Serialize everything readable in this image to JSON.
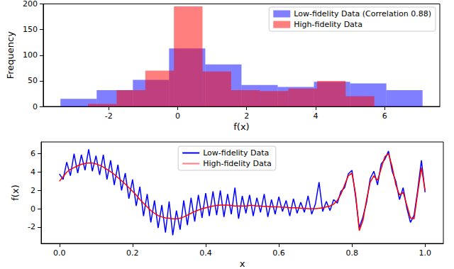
{
  "chart_data": [
    {
      "type": "histogram",
      "x_label": "f(x)",
      "y_label": "Frequency",
      "xlim": [
        -3.9,
        7.6
      ],
      "ylim": [
        0,
        200
      ],
      "xticks": [
        -2,
        0,
        2,
        4,
        6
      ],
      "yticks": [
        0,
        50,
        100,
        150,
        200
      ],
      "grid": false,
      "legend": "upper right",
      "series": [
        {
          "name": "Low-fidelity Data (Correlation 0.88)",
          "color": "#0000ff",
          "bins": [
            -3.4,
            -2.35,
            -1.3,
            -0.25,
            0.8,
            1.85,
            2.9,
            3.95,
            5.0,
            6.05,
            7.1
          ],
          "values": [
            15,
            32,
            52,
            113,
            82,
            42,
            38,
            48,
            45,
            32
          ]
        },
        {
          "name": "High-fidelity Data",
          "color": "#ff0000",
          "bins": [
            -2.6,
            -1.77,
            -0.94,
            -0.11,
            0.72,
            1.55,
            2.38,
            3.21,
            4.04,
            4.87,
            5.7
          ],
          "values": [
            5,
            32,
            70,
            195,
            68,
            32,
            30,
            35,
            50,
            20
          ]
        }
      ]
    },
    {
      "type": "line",
      "x_label": "x",
      "y_label": "f(x)",
      "xlim": [
        -0.05,
        1.05
      ],
      "ylim": [
        -3.8,
        7.3
      ],
      "xticks": [
        {
          "value": 0,
          "label": "0.0"
        },
        {
          "value": 0.2,
          "label": "0.2"
        },
        {
          "value": 0.4,
          "label": "0.4"
        },
        {
          "value": 0.6,
          "label": "0.6"
        },
        {
          "value": 0.8,
          "label": "0.8"
        },
        {
          "value": 1,
          "label": "1.0"
        }
      ],
      "yticks": [
        -2,
        0,
        2,
        4,
        6
      ],
      "grid": false,
      "legend": "upper center",
      "x": [
        0,
        0.01,
        0.02,
        0.03,
        0.04,
        0.05,
        0.06,
        0.07,
        0.08,
        0.09,
        0.1,
        0.11,
        0.12,
        0.13,
        0.14,
        0.15,
        0.16,
        0.17,
        0.18,
        0.19,
        0.2,
        0.21,
        0.22,
        0.23,
        0.24,
        0.25,
        0.26,
        0.27,
        0.28,
        0.29,
        0.3,
        0.31,
        0.32,
        0.33,
        0.34,
        0.35,
        0.36,
        0.37,
        0.38,
        0.39,
        0.4,
        0.41,
        0.42,
        0.43,
        0.44,
        0.45,
        0.46,
        0.47,
        0.48,
        0.49,
        0.5,
        0.51,
        0.52,
        0.53,
        0.54,
        0.55,
        0.56,
        0.57,
        0.58,
        0.59,
        0.6,
        0.61,
        0.62,
        0.63,
        0.64,
        0.65,
        0.66,
        0.67,
        0.68,
        0.69,
        0.7,
        0.71,
        0.72,
        0.73,
        0.74,
        0.75,
        0.76,
        0.77,
        0.78,
        0.79,
        0.8,
        0.81,
        0.82,
        0.83,
        0.84,
        0.85,
        0.86,
        0.87,
        0.88,
        0.89,
        0.9,
        0.91,
        0.92,
        0.93,
        0.94,
        0.95,
        0.96,
        0.97,
        0.98,
        0.99,
        1.0
      ],
      "series": [
        {
          "name": "Low-fidelity Data",
          "color": "#0000ff",
          "values": [
            3.8,
            3.2,
            5.1,
            3.6,
            6.0,
            3.9,
            5.9,
            4.2,
            6.5,
            4.1,
            5.8,
            3.7,
            5.9,
            3.2,
            5.3,
            2.6,
            4.8,
            2.0,
            3.9,
            1.1,
            3.2,
            0.3,
            2.4,
            -0.8,
            1.6,
            -1.5,
            0.9,
            -2.1,
            0.4,
            -2.6,
            0.8,
            -2.9,
            -0.2,
            -2.3,
            0.9,
            -1.8,
            1.2,
            -1.4,
            1.5,
            -1.0,
            1.7,
            -0.8,
            1.9,
            -0.7,
            2.0,
            -0.9,
            1.6,
            -0.6,
            2.3,
            -1.1,
            1.4,
            -0.5,
            1.5,
            -0.8,
            1.2,
            -0.4,
            1.6,
            -0.9,
            1.0,
            -0.6,
            1.3,
            -0.3,
            0.9,
            -0.8,
            1.1,
            -0.5,
            0.7,
            -0.4,
            1.4,
            -0.6,
            0.5,
            2.9,
            -0.3,
            0.8,
            -0.2,
            1.0,
            0.6,
            1.9,
            2.3,
            3.8,
            4.2,
            1.3,
            -2.1,
            -0.9,
            0.7,
            3.3,
            4.1,
            2.6,
            4.9,
            5.4,
            6.3,
            4.1,
            3.0,
            1.0,
            2.3,
            0.1,
            -1.5,
            -0.7,
            2.1,
            5.3,
            1.8
          ]
        },
        {
          "name": "High-fidelity Data",
          "color": "#ff0000",
          "values": [
            3.0,
            3.5,
            4.0,
            4.3,
            4.5,
            4.7,
            4.85,
            4.95,
            5.0,
            5.0,
            4.9,
            4.75,
            4.55,
            4.3,
            4.05,
            3.75,
            3.4,
            3.05,
            2.7,
            2.3,
            1.9,
            1.5,
            1.0,
            0.6,
            0.2,
            -0.2,
            -0.5,
            -0.75,
            -0.9,
            -1.0,
            -1.05,
            -1.1,
            -1.1,
            -1.05,
            -0.9,
            -0.7,
            -0.5,
            -0.3,
            -0.15,
            0.0,
            0.1,
            0.2,
            0.3,
            0.35,
            0.4,
            0.4,
            0.4,
            0.35,
            0.3,
            0.3,
            0.3,
            0.3,
            0.35,
            0.35,
            0.3,
            0.3,
            0.25,
            0.25,
            0.2,
            0.2,
            0.2,
            0.15,
            0.15,
            0.1,
            0.1,
            0.1,
            0.05,
            0.05,
            0.0,
            0.0,
            0.0,
            0.05,
            0.1,
            0.2,
            0.3,
            0.5,
            0.9,
            1.6,
            2.6,
            3.6,
            3.9,
            1.6,
            -2.4,
            -1.3,
            1.0,
            2.9,
            3.6,
            3.1,
            4.4,
            5.7,
            6.0,
            4.6,
            2.6,
            1.5,
            1.8,
            0.4,
            -1.0,
            -1.1,
            1.8,
            4.5,
            2.0
          ]
        }
      ]
    }
  ]
}
